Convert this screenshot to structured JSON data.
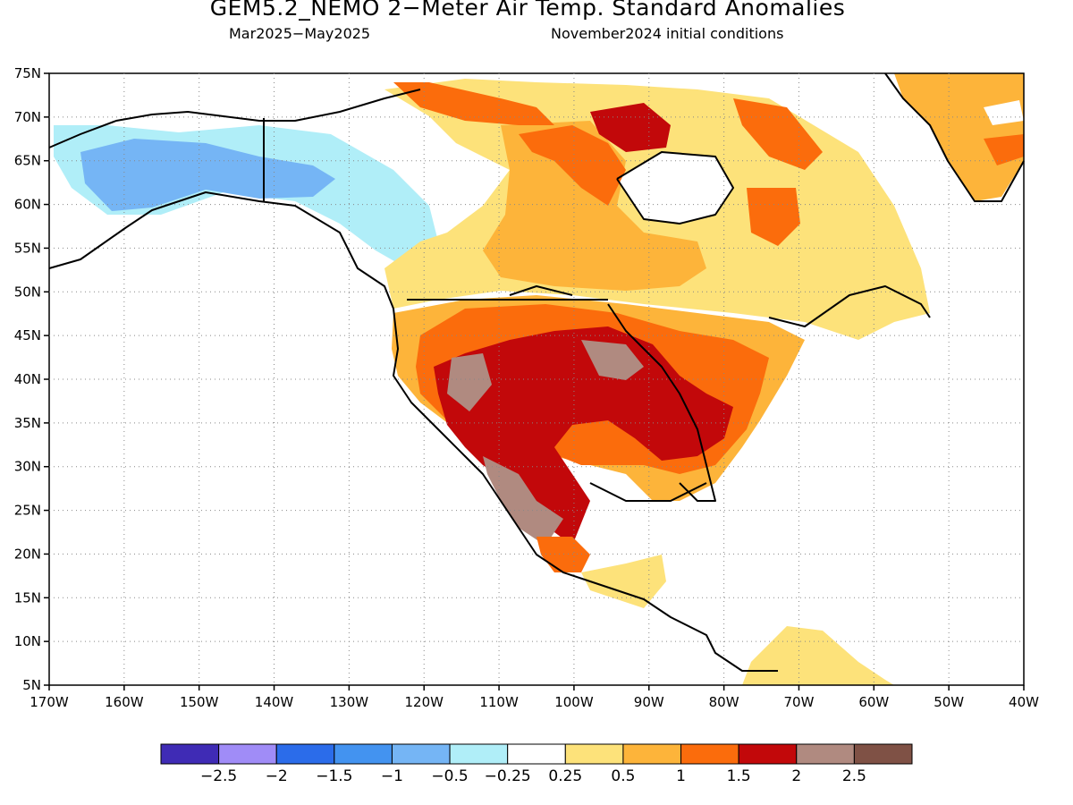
{
  "title": "GEM5.2_NEMO 2−Meter Air Temp. Standard Anomalies",
  "period": "Mar2025−May2025",
  "initial_conditions": "November2024 initial conditions",
  "map": {
    "lon_range": [
      -170,
      -40
    ],
    "lat_range": [
      5,
      75
    ],
    "lat_ticks": [
      "5N",
      "10N",
      "15N",
      "20N",
      "25N",
      "30N",
      "35N",
      "40N",
      "45N",
      "50N",
      "55N",
      "60N",
      "65N",
      "70N",
      "75N"
    ],
    "lon_ticks": [
      "170W",
      "160W",
      "150W",
      "140W",
      "130W",
      "120W",
      "110W",
      "100W",
      "90W",
      "80W",
      "70W",
      "60W",
      "50W",
      "40W"
    ],
    "gridlines": "dotted"
  },
  "colorbar": {
    "colors": [
      "#3f2bb5",
      "#a08cf7",
      "#2b6cea",
      "#4393f0",
      "#75b5f5",
      "#b0eef8",
      "#ffffff",
      "#fde27a",
      "#fdb43a",
      "#fb6c0c",
      "#c2080a",
      "#b08a80",
      "#7f5145"
    ],
    "labels": [
      "−2.5",
      "−2",
      "−1.5",
      "−1",
      "−0.5",
      "−0.25",
      "0.25",
      "0.5",
      "1",
      "1.5",
      "2",
      "2.5"
    ]
  }
}
